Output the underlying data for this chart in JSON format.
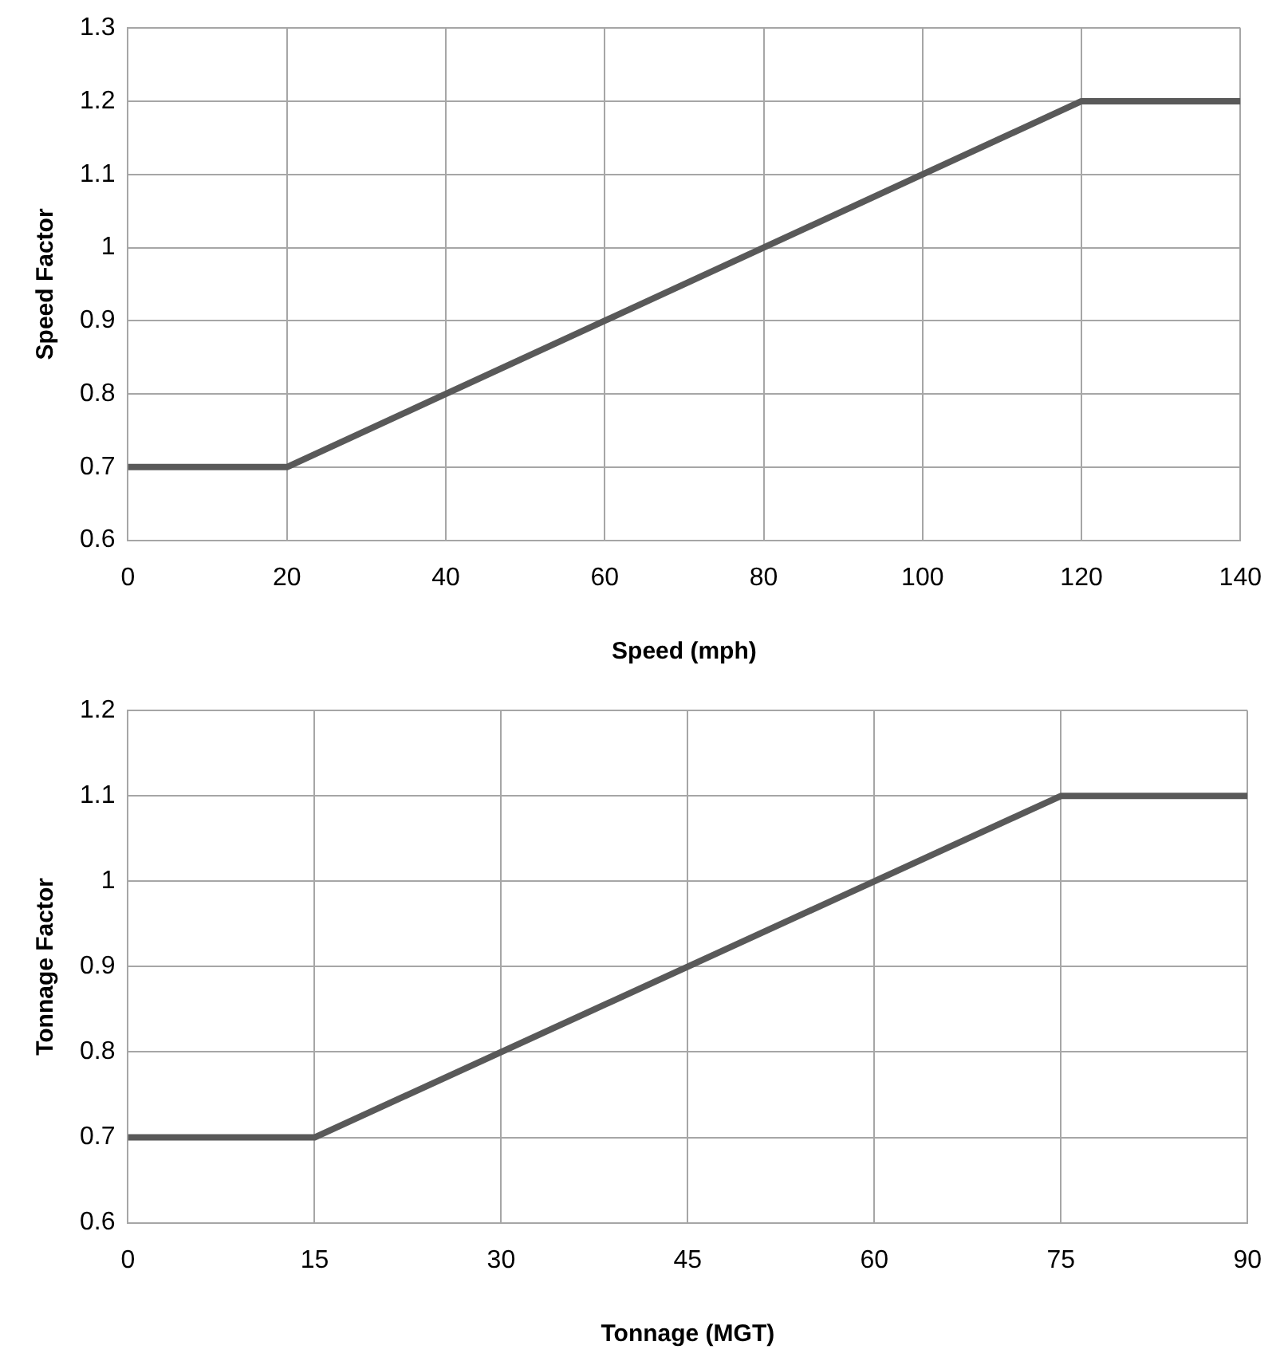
{
  "chart_data": [
    {
      "type": "line",
      "xlabel": "Speed (mph)",
      "ylabel": "Speed Factor",
      "x": [
        0,
        20,
        120,
        140
      ],
      "series": [
        {
          "color": "#595959",
          "values": [
            0.7,
            0.7,
            1.2,
            1.2
          ]
        }
      ],
      "xlim": [
        0,
        140
      ],
      "xticks": [
        0,
        20,
        40,
        60,
        80,
        100,
        120,
        140
      ],
      "ylim": [
        0.6,
        1.3
      ],
      "yticks": [
        0.6,
        0.7,
        0.8,
        0.9,
        1,
        1.1,
        1.2,
        1.3
      ],
      "grid": true,
      "legend": false,
      "marker": "none",
      "line_style": "solid"
    },
    {
      "type": "line",
      "xlabel": "Tonnage (MGT)",
      "ylabel": "Tonnage Factor",
      "x": [
        0,
        15,
        75,
        90
      ],
      "series": [
        {
          "color": "#595959",
          "values": [
            0.7,
            0.7,
            1.1,
            1.1
          ]
        }
      ],
      "xlim": [
        0,
        90
      ],
      "xticks": [
        0,
        15,
        30,
        45,
        60,
        75,
        90
      ],
      "ylim": [
        0.6,
        1.2
      ],
      "yticks": [
        0.6,
        0.7,
        0.8,
        0.9,
        1,
        1.1,
        1.2
      ],
      "grid": true,
      "legend": false,
      "marker": "none",
      "line_style": "solid"
    }
  ]
}
